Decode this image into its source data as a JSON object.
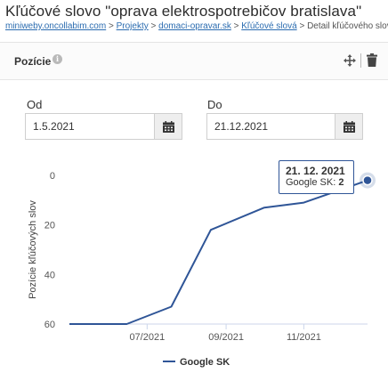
{
  "header": {
    "title": "Kľúčové slovo \"oprava elektrospotrebičov bratislava\"",
    "breadcrumb": [
      {
        "label": "miniweby.oncollabim.com",
        "link": true
      },
      {
        "label": "Projekty",
        "link": true
      },
      {
        "label": "domaci-opravar.sk",
        "link": true
      },
      {
        "label": "Kľúčové slová",
        "link": true
      },
      {
        "label": "Detail kľúčového slova",
        "link": false
      }
    ],
    "separator": ">"
  },
  "panel": {
    "title": "Pozície",
    "info_icon": "info-icon",
    "move_icon": "move-icon",
    "delete_icon": "trash-icon"
  },
  "filters": {
    "from_label": "Od",
    "from_value": "1.5.2021",
    "to_label": "Do",
    "to_value": "21.12.2021",
    "calendar_icon": "calendar-icon"
  },
  "chart_data": {
    "type": "line",
    "ylabel": "Pozície kľúčových slov",
    "xlabel": "",
    "y_inverted": true,
    "ylim": [
      0,
      60
    ],
    "yticks": [
      0,
      20,
      40,
      60
    ],
    "xticks": [
      "07/2021",
      "09/2021",
      "11/2021"
    ],
    "xlim": [
      "2021-05-01",
      "2021-12-21"
    ],
    "series": [
      {
        "name": "Google SK",
        "color": "#2f5597",
        "points": [
          {
            "date": "2021-05-01",
            "y": 60
          },
          {
            "date": "2021-06-15",
            "y": 60
          },
          {
            "date": "2021-07-20",
            "y": 53
          },
          {
            "date": "2021-08-20",
            "y": 22
          },
          {
            "date": "2021-10-01",
            "y": 13
          },
          {
            "date": "2021-11-01",
            "y": 11
          },
          {
            "date": "2021-12-21",
            "y": 2
          }
        ]
      }
    ],
    "tooltip": {
      "date": "21. 12. 2021",
      "series": "Google SK",
      "value": "2"
    },
    "legend_position": "bottom"
  }
}
